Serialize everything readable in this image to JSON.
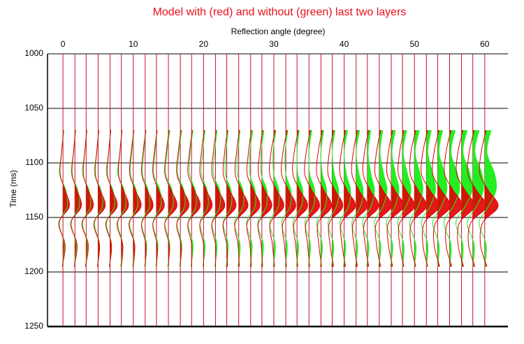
{
  "chart_data": {
    "type": "wiggle",
    "title": "Model with (red) and without (green) last two layers",
    "x_label": "Reflection angle (degree)",
    "y_label": "Time (ms)",
    "xlim": [
      -2.2,
      63.3
    ],
    "ylim": [
      1000,
      1250
    ],
    "y_inverted": true,
    "xticks": [
      0,
      10,
      20,
      30,
      40,
      50,
      60
    ],
    "yticks": [
      1000,
      1050,
      1100,
      1150,
      1200,
      1250
    ],
    "grid": true,
    "colors": [
      "#e00000",
      "#22ee22"
    ],
    "line_color": "#c8102e",
    "time": [
      1070,
      1090,
      1110,
      1125,
      1140,
      1155,
      1175,
      1195
    ],
    "traces": [
      {
        "x": 0,
        "values": [
          [
            0.1,
            -0.2,
            -0.4,
            0.3,
            0.9,
            -0.6,
            0.3,
            -0.1
          ],
          [
            0.1,
            -0.2,
            -0.5,
            0.4,
            0.6,
            -0.5,
            0.2,
            -0.1
          ]
        ]
      },
      {
        "x": 1.7,
        "values": [
          [
            0.1,
            -0.2,
            -0.4,
            0.3,
            0.9,
            -0.6,
            0.3,
            -0.1
          ],
          [
            0.1,
            -0.2,
            -0.5,
            0.4,
            0.6,
            -0.5,
            0.2,
            -0.1
          ]
        ]
      },
      {
        "x": 3.3,
        "values": [
          [
            0.1,
            -0.2,
            -0.4,
            0.3,
            1.0,
            -0.6,
            0.3,
            -0.1
          ],
          [
            0.1,
            -0.2,
            -0.5,
            0.4,
            0.6,
            -0.5,
            0.2,
            -0.1
          ]
        ]
      },
      {
        "x": 5,
        "values": [
          [
            0.1,
            -0.2,
            -0.4,
            0.3,
            1.0,
            -0.6,
            0.2,
            -0.1
          ],
          [
            0.1,
            -0.2,
            -0.5,
            0.4,
            0.6,
            -0.5,
            0.2,
            -0.1
          ]
        ]
      },
      {
        "x": 6.7,
        "values": [
          [
            0.1,
            -0.2,
            -0.4,
            0.3,
            1.0,
            -0.6,
            0.2,
            -0.1
          ],
          [
            0.1,
            -0.2,
            -0.5,
            0.4,
            0.6,
            -0.5,
            0.2,
            -0.1
          ]
        ]
      },
      {
        "x": 8.3,
        "values": [
          [
            0.1,
            -0.2,
            -0.4,
            0.3,
            1.0,
            -0.6,
            0.2,
            0.0
          ],
          [
            0.1,
            -0.2,
            -0.5,
            0.4,
            0.6,
            -0.5,
            0.2,
            -0.1
          ]
        ]
      },
      {
        "x": 10,
        "values": [
          [
            0.1,
            -0.3,
            -0.5,
            0.3,
            1.1,
            -0.6,
            0.2,
            0.0
          ],
          [
            0.1,
            -0.2,
            -0.4,
            0.4,
            0.6,
            -0.5,
            0.2,
            -0.1
          ]
        ]
      },
      {
        "x": 11.7,
        "values": [
          [
            0.1,
            -0.3,
            -0.5,
            0.3,
            1.1,
            -0.5,
            0.1,
            0.0
          ],
          [
            0.1,
            -0.2,
            -0.4,
            0.4,
            0.6,
            -0.5,
            0.2,
            -0.1
          ]
        ]
      },
      {
        "x": 13.3,
        "values": [
          [
            0.1,
            -0.3,
            -0.5,
            0.3,
            1.1,
            -0.5,
            0.1,
            0.0
          ],
          [
            0.1,
            -0.2,
            -0.4,
            0.5,
            0.6,
            -0.5,
            0.2,
            -0.1
          ]
        ]
      },
      {
        "x": 15,
        "values": [
          [
            0.1,
            -0.3,
            -0.5,
            0.4,
            1.2,
            -0.5,
            0.1,
            0.0
          ],
          [
            0.2,
            -0.2,
            -0.4,
            0.5,
            0.6,
            -0.5,
            0.2,
            -0.1
          ]
        ]
      },
      {
        "x": 16.7,
        "values": [
          [
            0.1,
            -0.3,
            -0.5,
            0.4,
            1.2,
            -0.5,
            0.1,
            0.0
          ],
          [
            0.2,
            -0.2,
            -0.4,
            0.5,
            0.6,
            -0.5,
            0.2,
            -0.1
          ]
        ]
      },
      {
        "x": 18.3,
        "values": [
          [
            0.1,
            -0.3,
            -0.5,
            0.4,
            1.2,
            -0.5,
            0.0,
            0.0
          ],
          [
            0.2,
            -0.2,
            -0.3,
            0.5,
            0.6,
            -0.5,
            0.2,
            -0.1
          ]
        ]
      },
      {
        "x": 20,
        "values": [
          [
            0.1,
            -0.3,
            -0.5,
            0.4,
            1.2,
            -0.5,
            0.0,
            0.0
          ],
          [
            0.2,
            -0.1,
            -0.3,
            0.5,
            0.6,
            -0.5,
            0.2,
            -0.1
          ]
        ]
      },
      {
        "x": 21.7,
        "values": [
          [
            0.1,
            -0.3,
            -0.5,
            0.4,
            1.3,
            -0.5,
            0.0,
            0.0
          ],
          [
            0.2,
            -0.1,
            -0.3,
            0.6,
            0.6,
            -0.5,
            0.2,
            -0.1
          ]
        ]
      },
      {
        "x": 23.3,
        "values": [
          [
            0.1,
            -0.3,
            -0.5,
            0.4,
            1.3,
            -0.5,
            0.0,
            0.1
          ],
          [
            0.2,
            -0.1,
            -0.2,
            0.6,
            0.6,
            -0.5,
            0.2,
            -0.1
          ]
        ]
      },
      {
        "x": 25,
        "values": [
          [
            0.1,
            -0.3,
            -0.5,
            0.4,
            1.3,
            -0.5,
            -0.1,
            0.1
          ],
          [
            0.2,
            -0.1,
            -0.2,
            0.6,
            0.6,
            -0.6,
            0.2,
            -0.1
          ]
        ]
      },
      {
        "x": 26.7,
        "values": [
          [
            0.1,
            -0.3,
            -0.5,
            0.4,
            1.3,
            -0.5,
            -0.1,
            0.1
          ],
          [
            0.3,
            -0.1,
            -0.1,
            0.6,
            0.6,
            -0.6,
            0.2,
            -0.1
          ]
        ]
      },
      {
        "x": 28.3,
        "values": [
          [
            0.1,
            -0.3,
            -0.5,
            0.4,
            1.4,
            -0.5,
            -0.1,
            0.1
          ],
          [
            0.3,
            -0.1,
            -0.1,
            0.7,
            0.6,
            -0.6,
            0.2,
            -0.1
          ]
        ]
      },
      {
        "x": 30,
        "values": [
          [
            0.2,
            -0.4,
            -0.6,
            0.4,
            1.4,
            -0.5,
            -0.2,
            0.1
          ],
          [
            0.3,
            -0.1,
            0.0,
            0.7,
            0.6,
            -0.6,
            0.2,
            -0.1
          ]
        ]
      },
      {
        "x": 31.7,
        "values": [
          [
            0.2,
            -0.4,
            -0.6,
            0.4,
            1.4,
            -0.4,
            -0.2,
            0.1
          ],
          [
            0.3,
            -0.1,
            0.0,
            0.7,
            0.6,
            -0.6,
            0.2,
            -0.1
          ]
        ]
      },
      {
        "x": 33.3,
        "values": [
          [
            0.2,
            -0.4,
            -0.6,
            0.4,
            1.5,
            -0.4,
            -0.2,
            0.1
          ],
          [
            0.3,
            0.0,
            0.1,
            0.8,
            0.6,
            -0.6,
            0.2,
            -0.1
          ]
        ]
      },
      {
        "x": 35,
        "values": [
          [
            0.2,
            -0.4,
            -0.6,
            0.4,
            1.5,
            -0.4,
            -0.2,
            0.1
          ],
          [
            0.4,
            0.0,
            0.1,
            0.8,
            0.6,
            -0.6,
            0.2,
            -0.1
          ]
        ]
      },
      {
        "x": 36.7,
        "values": [
          [
            0.2,
            -0.4,
            -0.6,
            0.4,
            1.5,
            -0.4,
            -0.3,
            0.1
          ],
          [
            0.4,
            0.0,
            0.2,
            0.8,
            0.6,
            -0.6,
            0.2,
            -0.1
          ]
        ]
      },
      {
        "x": 38.3,
        "values": [
          [
            0.2,
            -0.4,
            -0.6,
            0.4,
            1.5,
            -0.4,
            -0.3,
            0.2
          ],
          [
            0.4,
            0.0,
            0.3,
            0.9,
            0.6,
            -0.6,
            0.2,
            -0.1
          ]
        ]
      },
      {
        "x": 40,
        "values": [
          [
            0.2,
            -0.4,
            -0.6,
            0.4,
            1.6,
            -0.4,
            -0.3,
            0.2
          ],
          [
            0.5,
            0.0,
            0.3,
            0.9,
            0.6,
            -0.6,
            0.2,
            -0.1
          ]
        ]
      },
      {
        "x": 41.7,
        "values": [
          [
            0.2,
            -0.4,
            -0.6,
            0.4,
            1.6,
            -0.4,
            -0.3,
            0.2
          ],
          [
            0.5,
            0.0,
            0.4,
            1.0,
            0.6,
            -0.6,
            0.2,
            -0.1
          ]
        ]
      },
      {
        "x": 43.3,
        "values": [
          [
            0.2,
            -0.4,
            -0.6,
            0.4,
            1.6,
            -0.4,
            -0.3,
            0.2
          ],
          [
            0.5,
            0.1,
            0.5,
            1.0,
            0.5,
            -0.7,
            0.2,
            -0.1
          ]
        ]
      },
      {
        "x": 45,
        "values": [
          [
            0.2,
            -0.4,
            -0.6,
            0.5,
            1.7,
            -0.4,
            -0.4,
            0.2
          ],
          [
            0.5,
            0.1,
            0.6,
            1.1,
            0.5,
            -0.7,
            0.2,
            -0.1
          ]
        ]
      },
      {
        "x": 46.7,
        "values": [
          [
            0.2,
            -0.4,
            -0.6,
            0.5,
            1.7,
            -0.4,
            -0.4,
            0.2
          ],
          [
            0.6,
            0.1,
            0.6,
            1.1,
            0.5,
            -0.7,
            0.2,
            -0.1
          ]
        ]
      },
      {
        "x": 48.3,
        "values": [
          [
            0.2,
            -0.4,
            -0.6,
            0.5,
            1.7,
            -0.4,
            -0.4,
            0.2
          ],
          [
            0.6,
            0.1,
            0.7,
            1.2,
            0.5,
            -0.7,
            0.2,
            0.0
          ]
        ]
      },
      {
        "x": 50,
        "values": [
          [
            0.2,
            -0.5,
            -0.6,
            0.5,
            1.7,
            -0.4,
            -0.5,
            0.2
          ],
          [
            0.7,
            0.1,
            0.8,
            1.2,
            0.5,
            -0.7,
            0.2,
            0.0
          ]
        ]
      },
      {
        "x": 51.7,
        "values": [
          [
            0.2,
            -0.5,
            -0.7,
            0.5,
            1.8,
            -0.3,
            -0.5,
            0.2
          ],
          [
            0.7,
            0.2,
            0.9,
            1.3,
            0.5,
            -0.7,
            0.2,
            0.0
          ]
        ]
      },
      {
        "x": 53.3,
        "values": [
          [
            0.2,
            -0.5,
            -0.7,
            0.5,
            1.8,
            -0.3,
            -0.5,
            0.3
          ],
          [
            0.7,
            0.2,
            1.0,
            1.3,
            0.5,
            -0.7,
            0.2,
            0.0
          ]
        ]
      },
      {
        "x": 55,
        "values": [
          [
            0.2,
            -0.5,
            -0.7,
            0.5,
            1.8,
            -0.3,
            -0.5,
            0.3
          ],
          [
            0.8,
            0.2,
            1.1,
            1.4,
            0.5,
            -0.8,
            0.2,
            0.0
          ]
        ]
      },
      {
        "x": 56.7,
        "values": [
          [
            0.2,
            -0.5,
            -0.7,
            0.5,
            1.8,
            -0.3,
            -0.5,
            0.3
          ],
          [
            0.8,
            0.2,
            1.2,
            1.5,
            0.5,
            -0.8,
            0.2,
            0.0
          ]
        ]
      },
      {
        "x": 58.3,
        "values": [
          [
            0.2,
            -0.5,
            -0.7,
            0.5,
            1.9,
            -0.3,
            -0.6,
            0.3
          ],
          [
            0.9,
            0.3,
            1.3,
            1.5,
            0.5,
            -0.8,
            0.2,
            0.0
          ]
        ]
      },
      {
        "x": 60,
        "values": [
          [
            0.2,
            -0.5,
            -0.7,
            0.5,
            1.9,
            -0.3,
            -0.6,
            0.3
          ],
          [
            0.9,
            0.3,
            1.4,
            1.6,
            0.5,
            -0.8,
            0.2,
            0.0
          ]
        ]
      }
    ]
  }
}
